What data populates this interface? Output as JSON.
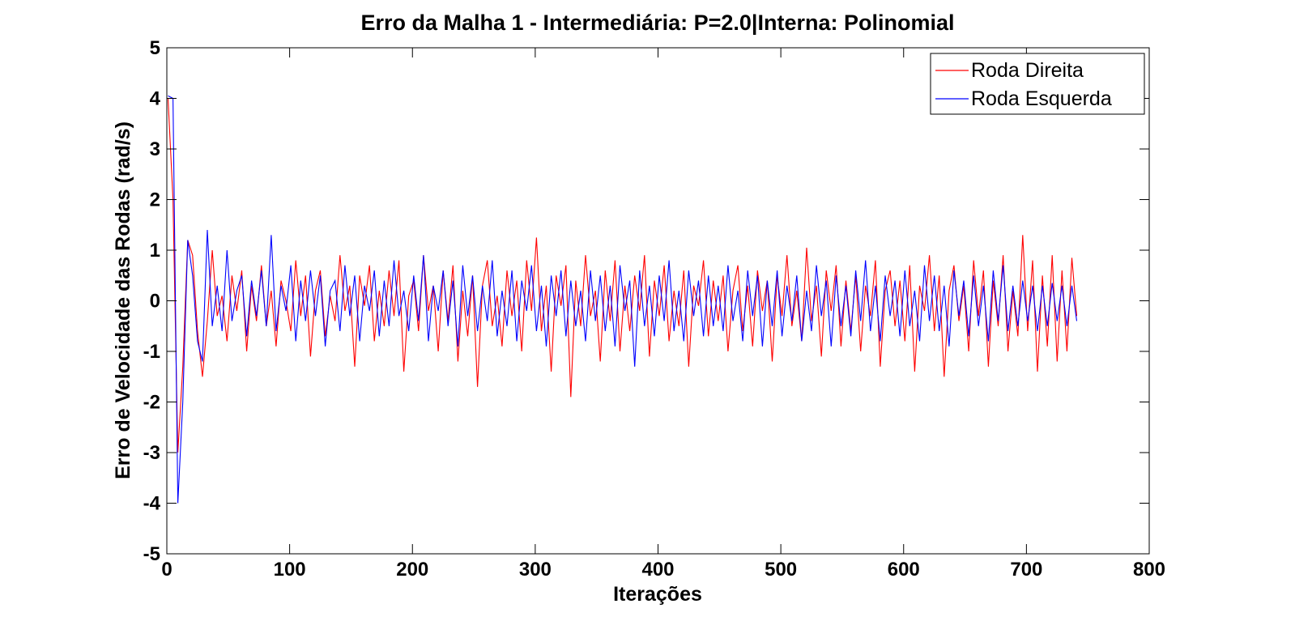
{
  "colors": {
    "series_1": "#ff0000",
    "series_2": "#0000ff",
    "axes": "#000000",
    "background": "#ffffff"
  },
  "chart_data": {
    "type": "line",
    "title": "Erro da Malha 1 - Intermediária: P=2.0|Interna: Polinomial",
    "xlabel": "Iterações",
    "ylabel": "Erro de Velocidade das Rodas (rad/s)",
    "xlim": [
      0,
      800
    ],
    "ylim": [
      -5,
      5
    ],
    "xticks": [
      0,
      100,
      200,
      300,
      400,
      500,
      600,
      700,
      800
    ],
    "yticks": [
      -5,
      -4,
      -3,
      -2,
      -1,
      0,
      1,
      2,
      3,
      4,
      5
    ],
    "grid": false,
    "legend": {
      "position": "top-right",
      "entries": [
        "Roda Direita",
        "Roda Esquerda"
      ]
    },
    "series": [
      {
        "name": "Roda Direita",
        "color": "#ff0000",
        "x_start": 1,
        "x_step": 4,
        "values": [
          4.0,
          2.0,
          -3.0,
          -1.3,
          1.2,
          0.9,
          -0.6,
          -1.5,
          -0.4,
          1.0,
          -0.3,
          0.1,
          -0.8,
          0.5,
          -0.2,
          0.6,
          -1.0,
          0.3,
          -0.4,
          0.7,
          -0.5,
          0.2,
          -0.9,
          0.4,
          0.0,
          -0.6,
          0.8,
          -0.3,
          0.5,
          -1.1,
          0.2,
          0.6,
          -0.7,
          0.1,
          -0.4,
          0.9,
          -0.2,
          0.3,
          -1.3,
          0.5,
          -0.1,
          0.7,
          -0.8,
          0.2,
          -0.5,
          0.6,
          -0.3,
          0.8,
          -1.4,
          0.1,
          0.4,
          -0.6,
          0.9,
          -0.2,
          0.3,
          -1.0,
          0.6,
          -0.4,
          0.7,
          -1.2,
          0.2,
          -0.7,
          0.5,
          -1.7,
          0.3,
          0.8,
          -0.5,
          0.1,
          -0.9,
          0.6,
          -0.3,
          0.4,
          -1.0,
          0.8,
          -0.2,
          1.25,
          -0.6,
          0.3,
          -1.4,
          0.5,
          -0.1,
          0.7,
          -1.9,
          0.4,
          -0.5,
          0.9,
          -0.3,
          0.2,
          -1.2,
          0.6,
          -0.4,
          0.8,
          -1.0,
          0.3,
          -0.6,
          0.5,
          -0.2,
          0.9,
          -1.1,
          0.4,
          -0.3,
          0.7,
          -0.8,
          0.2,
          -0.5,
          0.6,
          -1.3,
          0.3,
          -0.1,
          0.8,
          -0.7,
          0.4,
          -0.4,
          0.5,
          -1.0,
          0.2,
          0.7,
          -0.6,
          0.3,
          -0.9,
          0.6,
          -0.2,
          0.4,
          -1.2,
          0.5,
          -0.3,
          0.9,
          -0.5,
          0.2,
          -0.8,
          1.05,
          -0.4,
          0.3,
          -1.1,
          0.6,
          -0.2,
          0.7,
          -0.9,
          0.4,
          -0.6,
          0.5,
          -1.0,
          0.3,
          -0.3,
          0.8,
          -1.3,
          0.2,
          0.6,
          -0.5,
          0.4,
          -0.8,
          0.7,
          -1.4,
          0.3,
          -0.2,
          0.9,
          -0.6,
          0.5,
          -1.5,
          0.2,
          0.7,
          -0.4,
          0.3,
          -1.0,
          0.8,
          -0.3,
          0.6,
          -1.3,
          0.4,
          -0.5,
          0.9,
          -1.0,
          0.2,
          -0.7,
          1.3,
          -0.6,
          0.8,
          -1.4,
          0.5,
          -0.9,
          0.9,
          -1.2,
          0.6,
          -1.0,
          0.85,
          -0.3
        ]
      },
      {
        "name": "Roda Esquerda",
        "color": "#0000ff",
        "x_start": 1,
        "x_step": 4,
        "values": [
          4.05,
          4.0,
          -4.0,
          -2.0,
          1.2,
          0.5,
          -0.8,
          -1.2,
          1.4,
          -0.5,
          0.3,
          -0.6,
          1.0,
          -0.4,
          0.2,
          0.5,
          -0.7,
          0.4,
          -0.3,
          0.6,
          -0.5,
          1.3,
          -0.6,
          0.3,
          -0.2,
          0.7,
          -0.8,
          0.4,
          -0.4,
          0.6,
          -0.3,
          0.5,
          -0.9,
          0.2,
          0.4,
          -0.6,
          0.7,
          -0.3,
          0.5,
          -0.8,
          0.3,
          -0.2,
          0.6,
          -0.7,
          0.4,
          -0.5,
          0.8,
          -0.3,
          0.2,
          -0.6,
          0.5,
          -0.4,
          0.9,
          -0.8,
          0.3,
          -0.2,
          0.6,
          -0.5,
          0.4,
          -0.9,
          0.7,
          -0.3,
          0.5,
          -0.6,
          0.3,
          -0.4,
          0.8,
          -0.7,
          0.2,
          -0.5,
          0.6,
          -0.8,
          0.4,
          -0.2,
          0.7,
          -0.6,
          0.3,
          -0.9,
          0.5,
          -0.3,
          0.6,
          -0.7,
          0.4,
          -0.5,
          0.2,
          -0.8,
          0.6,
          -0.4,
          0.5,
          -0.6,
          0.3,
          -0.9,
          0.7,
          -0.2,
          0.4,
          -1.3,
          0.6,
          -0.5,
          0.3,
          -0.7,
          0.5,
          -0.4,
          0.8,
          -0.6,
          0.2,
          -0.8,
          0.6,
          -0.3,
          0.4,
          -0.7,
          0.5,
          -0.5,
          0.3,
          -0.6,
          0.7,
          -0.4,
          0.2,
          -0.8,
          0.6,
          -0.3,
          0.5,
          -0.9,
          0.4,
          -0.5,
          0.6,
          -0.7,
          0.3,
          -0.4,
          0.5,
          -0.8,
          0.2,
          -0.6,
          0.7,
          -0.3,
          0.4,
          -0.9,
          0.5,
          -0.5,
          0.3,
          -0.7,
          0.6,
          -0.4,
          0.8,
          -0.6,
          0.3,
          -0.8,
          0.5,
          -0.3,
          0.4,
          -0.7,
          0.6,
          -0.5,
          0.2,
          -0.8,
          0.7,
          -0.4,
          0.5,
          -0.6,
          0.3,
          -0.9,
          0.6,
          -0.3,
          0.4,
          -0.7,
          0.5,
          -0.5,
          0.3,
          -0.8,
          0.6,
          -0.4,
          0.7,
          -0.6,
          0.3,
          -0.5,
          0.4,
          -0.4,
          0.3,
          -0.6,
          0.3,
          -0.5,
          0.35,
          -0.4,
          0.3,
          -0.5,
          0.3,
          -0.4
        ]
      }
    ]
  }
}
